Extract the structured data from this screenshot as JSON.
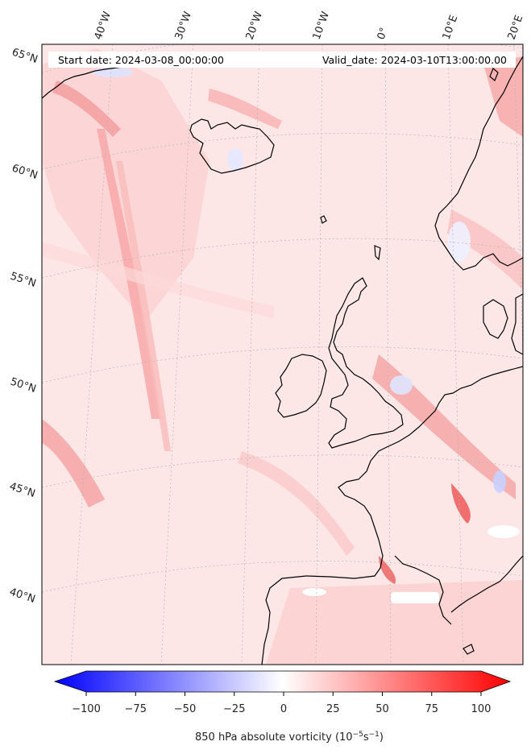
{
  "header": {
    "start_date": "Start date: 2024-03-08_00:00:00",
    "valid_date": "Valid_date: 2024-03-10T13:00:00.00"
  },
  "longitude_labels": [
    "40°W",
    "30°W",
    "20°W",
    "10°W",
    "0°",
    "10°E",
    "20°E"
  ],
  "latitude_labels": [
    "65°N",
    "60°N",
    "55°N",
    "50°N",
    "45°N",
    "40°N"
  ],
  "colorbar": {
    "min": -100,
    "max": 100,
    "ticks": [
      "−100",
      "−75",
      "−50",
      "−25",
      "0",
      "25",
      "50",
      "75",
      "100"
    ],
    "label": "850 hPa absolute vorticity (10",
    "label_exp1": "−5",
    "label_mid": "s",
    "label_exp2": "−1",
    "label_end": ")",
    "color_low": "#0000ff",
    "color_mid": "#ffffff",
    "color_high": "#ff0000"
  },
  "colors": {
    "field_base": "#fde4e4",
    "coastline": "#000000",
    "grid": "#b0b0b0"
  }
}
